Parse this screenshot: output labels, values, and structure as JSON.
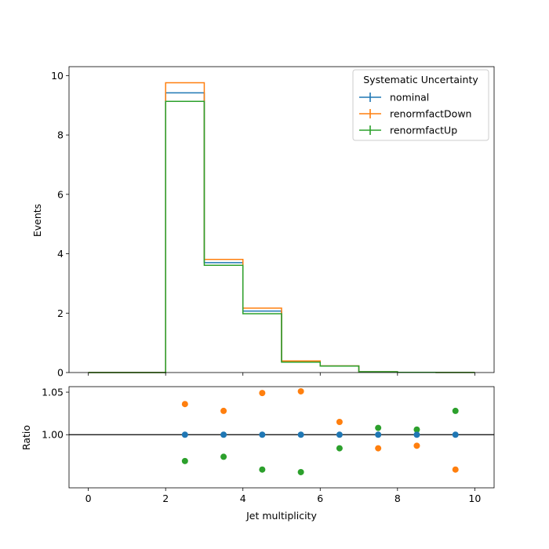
{
  "chart_data": {
    "type": "histogram-with-ratio",
    "bin_edges": [
      0,
      1,
      2,
      3,
      4,
      5,
      6,
      7,
      8,
      9,
      10
    ],
    "x_range": [
      -0.5,
      10.5
    ],
    "x_ticks": [
      0,
      2,
      4,
      6,
      8,
      10
    ],
    "xlabel": "Jet multiplicity",
    "top_panel": {
      "ylabel": "Events",
      "ylim": [
        0,
        10.3
      ],
      "y_ticks": [
        0,
        2,
        4,
        6,
        8,
        10
      ],
      "series": [
        {
          "name": "nominal",
          "color": "#1f77b4",
          "values": [
            0,
            0,
            9.42,
            3.7,
            2.07,
            0.37,
            0.22,
            0.025,
            0.006,
            0.002
          ]
        },
        {
          "name": "renormfactDown",
          "color": "#ff7f0e",
          "values": [
            0,
            0,
            9.76,
            3.81,
            2.17,
            0.39,
            0.225,
            0.025,
            0.006,
            0.002
          ]
        },
        {
          "name": "renormfactUp",
          "color": "#2ca02c",
          "values": [
            0,
            0,
            9.13,
            3.61,
            1.98,
            0.35,
            0.217,
            0.025,
            0.006,
            0.002
          ]
        }
      ],
      "legend": {
        "title": "Systematic Uncertainty",
        "placement": "top-right",
        "entries": [
          "nominal",
          "renormfactDown",
          "renormfactUp"
        ]
      }
    },
    "ratio_panel": {
      "ylabel": "Ratio",
      "ylim": [
        0.9375,
        1.0565
      ],
      "y_ticks": [
        1.0,
        1.05
      ],
      "y_tick_labels": [
        "1.00",
        "1.05"
      ],
      "reference_line": 1.0,
      "x": [
        2.5,
        3.5,
        4.5,
        5.5,
        6.5,
        7.5,
        8.5,
        9.5
      ],
      "series": [
        {
          "name": "nominal",
          "color": "#1f77b4",
          "values": [
            1.0,
            1.0,
            1.0,
            1.0,
            1.0,
            1.0,
            1.0,
            1.0
          ]
        },
        {
          "name": "renormfactDown",
          "color": "#ff7f0e",
          "values": [
            1.036,
            1.028,
            1.049,
            1.051,
            1.015,
            0.984,
            0.987,
            0.959
          ]
        },
        {
          "name": "renormfactUp",
          "color": "#2ca02c",
          "values": [
            0.969,
            0.974,
            0.959,
            0.956,
            0.984,
            1.008,
            1.006,
            1.028
          ]
        }
      ]
    }
  }
}
